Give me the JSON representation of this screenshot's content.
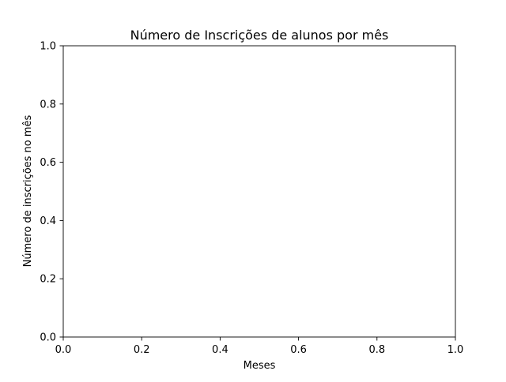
{
  "chart_data": {
    "type": "line",
    "title": "Número de Inscrições de alunos por mês",
    "xlabel": "Meses",
    "ylabel": "Número de inscrições no mês",
    "xlim": [
      0.0,
      1.0
    ],
    "ylim": [
      0.0,
      1.0
    ],
    "x_ticks": [
      0.0,
      0.2,
      0.4,
      0.6,
      0.8,
      1.0
    ],
    "y_ticks": [
      0.0,
      0.2,
      0.4,
      0.6,
      0.8,
      1.0
    ],
    "x_tick_labels": [
      "0.0",
      "0.2",
      "0.4",
      "0.6",
      "0.8",
      "1.0"
    ],
    "y_tick_labels": [
      "0.0",
      "0.2",
      "0.4",
      "0.6",
      "0.8",
      "1.0"
    ],
    "grid": false,
    "series": []
  }
}
